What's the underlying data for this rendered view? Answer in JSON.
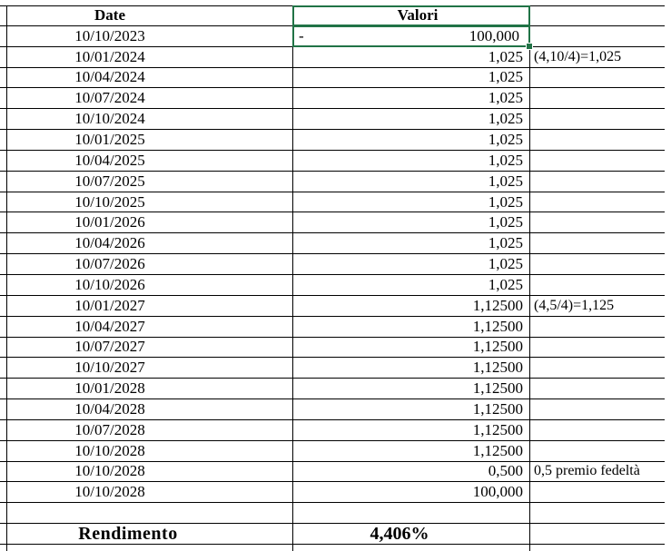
{
  "table": {
    "headers": {
      "date": "Date",
      "valori": "Valori"
    },
    "colors": {
      "selection": "#217346",
      "grid": "#000000",
      "text": "#000000",
      "background": "#ffffff"
    },
    "rows": [
      {
        "date": "10/10/2023",
        "minus": "-",
        "value": "100,000",
        "note": "",
        "selected": true
      },
      {
        "date": "10/01/2024",
        "value": "1,025",
        "note": "(4,10/4)=1,025"
      },
      {
        "date": "10/04/2024",
        "value": "1,025",
        "note": ""
      },
      {
        "date": "10/07/2024",
        "value": "1,025",
        "note": ""
      },
      {
        "date": "10/10/2024",
        "value": "1,025",
        "note": ""
      },
      {
        "date": "10/01/2025",
        "value": "1,025",
        "note": ""
      },
      {
        "date": "10/04/2025",
        "value": "1,025",
        "note": ""
      },
      {
        "date": "10/07/2025",
        "value": "1,025",
        "note": ""
      },
      {
        "date": "10/10/2025",
        "value": "1,025",
        "note": ""
      },
      {
        "date": "10/01/2026",
        "value": "1,025",
        "note": ""
      },
      {
        "date": "10/04/2026",
        "value": "1,025",
        "note": ""
      },
      {
        "date": "10/07/2026",
        "value": "1,025",
        "note": ""
      },
      {
        "date": "10/10/2026",
        "value": "1,025",
        "note": ""
      },
      {
        "date": "10/01/2027",
        "value": "1,12500",
        "note": "(4,5/4)=1,125"
      },
      {
        "date": "10/04/2027",
        "value": "1,12500",
        "note": ""
      },
      {
        "date": "10/07/2027",
        "value": "1,12500",
        "note": ""
      },
      {
        "date": "10/10/2027",
        "value": "1,12500",
        "note": ""
      },
      {
        "date": "10/01/2028",
        "value": "1,12500",
        "note": ""
      },
      {
        "date": "10/04/2028",
        "value": "1,12500",
        "note": ""
      },
      {
        "date": "10/07/2028",
        "value": "1,12500",
        "note": ""
      },
      {
        "date": "10/10/2028",
        "value": "1,12500",
        "note": ""
      },
      {
        "date": "10/10/2028",
        "value": "0,500",
        "note": "0,5 premio fedeltà"
      },
      {
        "date": "10/10/2028",
        "value": "100,000",
        "note": ""
      },
      {
        "date": "",
        "value": "",
        "note": ""
      }
    ],
    "summary": {
      "label": "Rendimento",
      "value": "4,406%"
    }
  }
}
